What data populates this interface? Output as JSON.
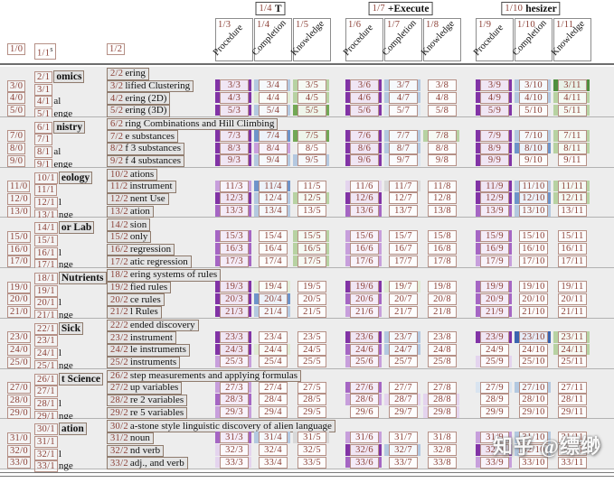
{
  "watermark": {
    "text": "知乎 @缥缈"
  },
  "palette": {
    "P3": "#8133a6",
    "P2": "#a566c4",
    "P1": "#c79fdc",
    "P0": "#e4d4ee",
    "B3": "#3b64b0",
    "B2": "#6e94ca",
    "B1": "#b3c8e0",
    "B0": "#d9e4f0",
    "G3": "#4f8f3e",
    "G2": "#72a855",
    "G1": "#b7d2a2",
    "G0": "#dfead4",
    "GY": "#d8d8d8"
  },
  "header": {
    "left_cols": [
      {
        "idx": "1/0",
        "suffix": ""
      },
      {
        "idx": "1/1",
        "suffix": "s"
      },
      {
        "idx": "1/2",
        "suffix": ""
      }
    ],
    "method_groups": [
      {
        "idx": "1/4",
        "label": "T",
        "subs": [
          {
            "idx": "1/3",
            "label": "Procedure"
          },
          {
            "idx": "1/4",
            "label": "Completion"
          },
          {
            "idx": "1/5",
            "label": "Knowledge"
          }
        ]
      },
      {
        "idx": "1/7",
        "label": "+Execute",
        "subs": [
          {
            "idx": "1/6",
            "label": "Procedure"
          },
          {
            "idx": "1/7",
            "label": "Completion"
          },
          {
            "idx": "1/8",
            "label": "Knowledge"
          }
        ]
      },
      {
        "idx": "1/10",
        "label": "hesizer",
        "subs": [
          {
            "idx": "1/9",
            "label": "Procedure"
          },
          {
            "idx": "1/10",
            "label": "Completion"
          },
          {
            "idx": "1/11",
            "label": "Knowledge"
          }
        ]
      }
    ]
  },
  "groups": [
    {
      "row": 2,
      "name": "omics",
      "desc": "ering",
      "rows": [
        {
          "row": 3,
          "variant": "",
          "task": "lified Clustering",
          "strips": [
            "P3",
            "B1",
            "G1",
            "P3",
            "B1",
            "",
            "P3",
            "B1",
            "G3"
          ]
        },
        {
          "row": 4,
          "variant": "al",
          "task": "ering (2D)",
          "strips": [
            "P3",
            "G0",
            "G1",
            "P3",
            "B1",
            "",
            "P3",
            "B1",
            "G1"
          ]
        },
        {
          "row": 5,
          "variant": "enge",
          "task": "ering (3D)",
          "strips": [
            "P3",
            "B1",
            "G2",
            "P3",
            "B0",
            "",
            "P3",
            "",
            "G1"
          ]
        }
      ]
    },
    {
      "row": 6,
      "name": "nistry",
      "desc": "ring Combinations and Hill Climbing",
      "rows": [
        {
          "row": 7,
          "variant": "",
          "task": "e substances",
          "strips": [
            "P3",
            "B2",
            "G2",
            "P3",
            "B1",
            "G1",
            "P3",
            "B1",
            "G1"
          ]
        },
        {
          "row": 8,
          "variant": "al",
          "task": "f 3 substances",
          "strips": [
            "P3",
            "P1",
            "",
            "P3",
            "B1",
            "",
            "P3",
            "B2",
            "G1"
          ]
        },
        {
          "row": 9,
          "variant": "enge",
          "task": "f 4 substances",
          "strips": [
            "P3",
            "B1",
            "B1",
            "P3",
            "B0",
            "",
            "P3",
            "",
            ""
          ]
        }
      ]
    },
    {
      "row": 10,
      "name": "eology",
      "desc": "ations",
      "rows": [
        {
          "row": 11,
          "variant": "",
          "task": "instrument",
          "strips": [
            "P1",
            "B2",
            "",
            "P0",
            "GY",
            "",
            "P3",
            "B1",
            "G1"
          ]
        },
        {
          "row": 12,
          "variant": "l",
          "task": "nent Use",
          "strips": [
            "P3",
            "B1",
            "G1",
            "P3",
            "",
            "",
            "P3",
            "B2",
            "G1"
          ]
        },
        {
          "row": 13,
          "variant": "nge",
          "task": "ation",
          "strips": [
            "P2",
            "B1",
            "",
            "P2",
            "",
            "",
            "P2",
            "B1",
            ""
          ]
        }
      ]
    },
    {
      "row": 14,
      "name": "or Lab",
      "desc": "sion",
      "rows": [
        {
          "row": 15,
          "variant": "",
          "task": "only",
          "strips": [
            "P2",
            "",
            "G1",
            "P1",
            "",
            "",
            "P2",
            "",
            ""
          ]
        },
        {
          "row": 16,
          "variant": "l",
          "task": "regression",
          "strips": [
            "P2",
            "",
            "G1",
            "P1",
            "",
            "",
            "P2",
            "",
            ""
          ]
        },
        {
          "row": 17,
          "variant": "nge",
          "task": "atic regression",
          "strips": [
            "P2",
            "",
            "G1",
            "P1",
            "",
            "",
            "P1",
            "",
            ""
          ]
        }
      ]
    },
    {
      "row": 18,
      "name": "Nutrients",
      "desc": "ering systems of rules",
      "rows": [
        {
          "row": 19,
          "variant": "",
          "task": "fied rules",
          "strips": [
            "P3",
            "G0",
            "",
            "P3",
            "G0",
            "",
            "P2",
            "",
            ""
          ]
        },
        {
          "row": 20,
          "variant": "l",
          "task": "ce rules",
          "strips": [
            "P3",
            "B2",
            "",
            "P2",
            "",
            "",
            "P2",
            "",
            ""
          ]
        },
        {
          "row": 21,
          "variant": "nge",
          "task": "l Rules",
          "strips": [
            "P3",
            "B1",
            "",
            "P1",
            "",
            "",
            "P2",
            "",
            ""
          ]
        }
      ]
    },
    {
      "row": 22,
      "name": "Sick",
      "desc": "ended discovery",
      "rows": [
        {
          "row": 23,
          "variant": "",
          "task": "instrument",
          "strips": [
            "P3",
            "",
            "",
            "P3",
            "B1",
            "",
            "P3",
            "B3",
            "G1"
          ]
        },
        {
          "row": 24,
          "variant": "l",
          "task": "le instruments",
          "strips": [
            "P3",
            "G0",
            "",
            "P2",
            "B1",
            "",
            "",
            "",
            "G1"
          ]
        },
        {
          "row": 25,
          "variant": "nge",
          "task": "instruments",
          "strips": [
            "P1",
            "",
            "",
            "P1",
            "",
            "",
            "P0",
            "",
            ""
          ]
        }
      ]
    },
    {
      "row": 26,
      "name": "t Science",
      "desc": "step measurements and applying formulas",
      "rows": [
        {
          "row": 27,
          "variant": "",
          "task": "up variables",
          "strips": [
            "P1",
            "",
            "",
            "P2",
            "",
            "",
            "B0",
            "B1",
            ""
          ]
        },
        {
          "row": 28,
          "variant": "l",
          "task": "re 2 variables",
          "strips": [
            "P2",
            "",
            "",
            "P1",
            "P0",
            "P0",
            "",
            "",
            ""
          ]
        },
        {
          "row": 29,
          "variant": "nge",
          "task": "re 5 variables",
          "strips": [
            "P1",
            "",
            "",
            "",
            "",
            "P0",
            "",
            "",
            ""
          ]
        }
      ]
    },
    {
      "row": 30,
      "name": "ation",
      "desc": "a-stone style linguistic discovery of alien language",
      "rows": [
        {
          "row": 31,
          "variant": "",
          "task": "noun",
          "strips": [
            "P2",
            "B1",
            "GY",
            "P1",
            "",
            "",
            "P1",
            "B1",
            ""
          ]
        },
        {
          "row": 32,
          "variant": "l",
          "task": "nd verb",
          "strips": [
            "P0",
            "",
            "",
            "P3",
            "B1",
            "",
            "P3",
            "B1",
            ""
          ]
        },
        {
          "row": 33,
          "variant": "nge",
          "task": "adj., and verb",
          "strips": [
            "P0",
            "",
            "",
            "P2",
            "",
            "",
            "P1",
            "",
            ""
          ]
        }
      ]
    }
  ]
}
